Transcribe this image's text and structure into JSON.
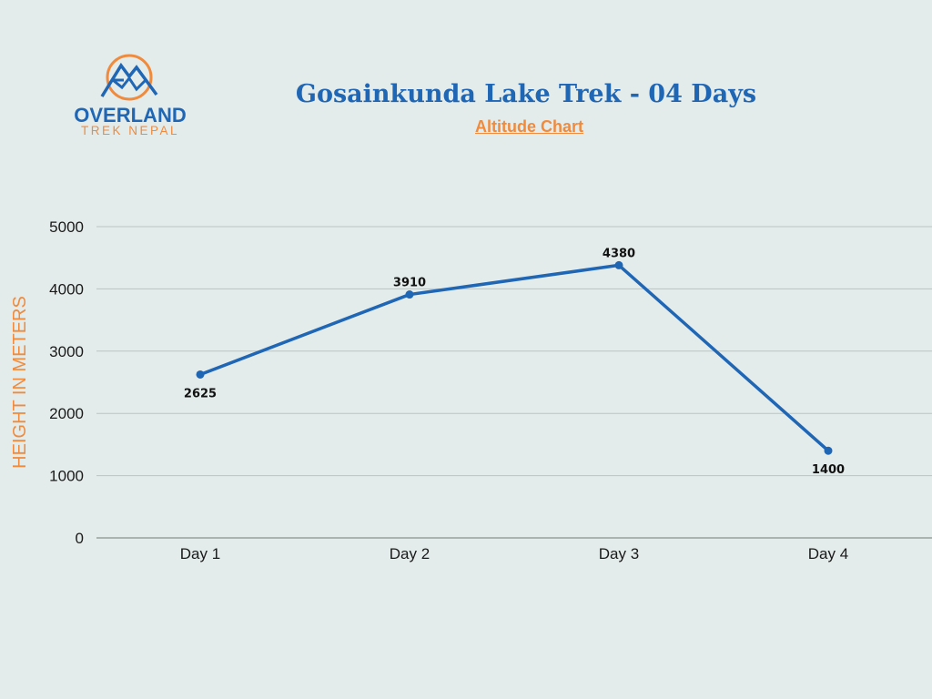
{
  "logo": {
    "brand": "OVERLAND",
    "sub": "TREK NEPAL",
    "icon": "mountain-circle-icon"
  },
  "header": {
    "title": "Gosainkunda Lake Trek - 04 Days",
    "subtitle": "Altitude Chart"
  },
  "colors": {
    "line": "#1f66b5",
    "accent": "#f08a3c",
    "background": "#e4eceb",
    "grid": "#bcc4c3"
  },
  "chart_data": {
    "type": "line",
    "title": "Gosainkunda Lake Trek - 04 Days",
    "subtitle": "Altitude Chart",
    "xlabel": "",
    "ylabel": "HEIGHT IN METERS",
    "categories": [
      "Day 1",
      "Day 2",
      "Day 3",
      "Day 4"
    ],
    "values": [
      2625,
      3910,
      4380,
      1400
    ],
    "data_labels": [
      "2625",
      "3910",
      "4380",
      "1400"
    ],
    "ylim": [
      0,
      5000
    ],
    "yticks": [
      0,
      1000,
      2000,
      3000,
      4000,
      5000
    ],
    "ytick_labels": [
      "0",
      "1000",
      "2000",
      "3000",
      "4000",
      "5000"
    ],
    "grid": true,
    "legend": "none"
  }
}
